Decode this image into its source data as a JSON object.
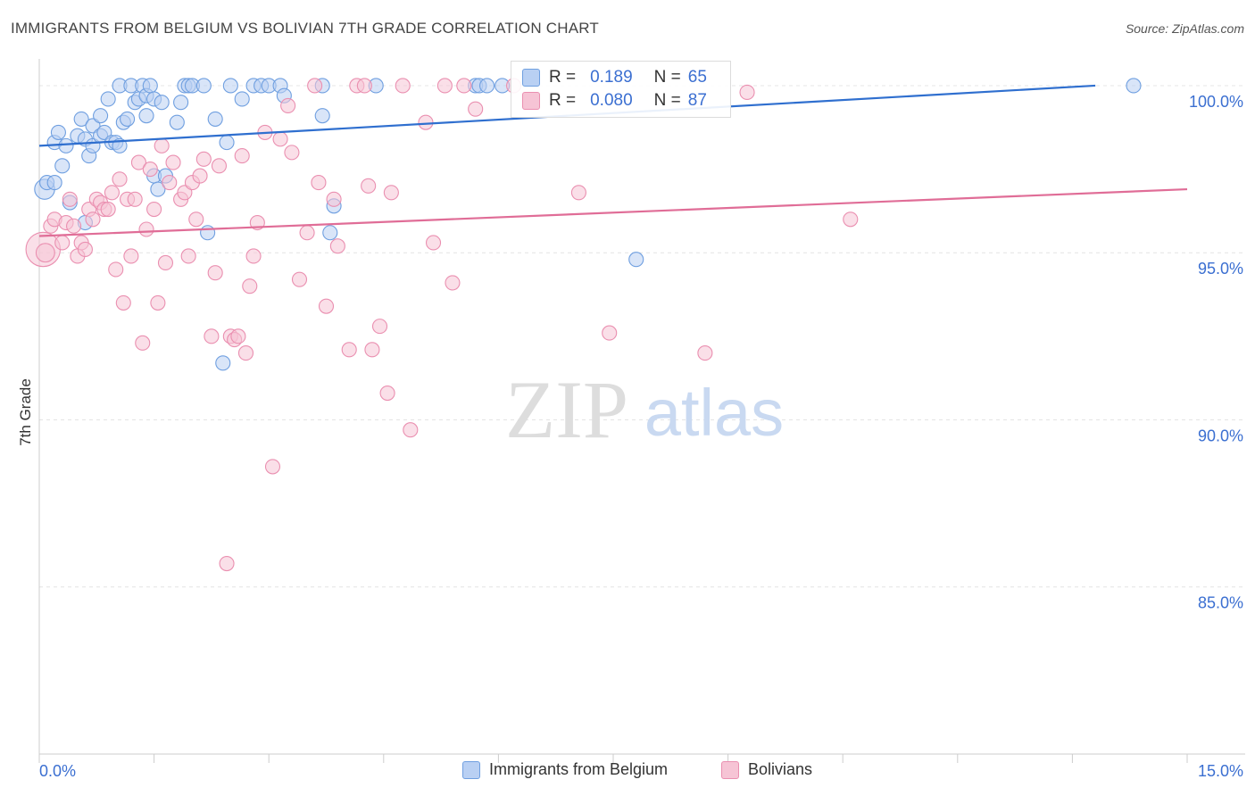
{
  "title": "IMMIGRANTS FROM BELGIUM VS BOLIVIAN 7TH GRADE CORRELATION CHART",
  "source": "Source: ZipAtlas.com",
  "watermark": {
    "zip": "ZIP",
    "atlas": "atlas"
  },
  "colors": {
    "blue": "#6f9fe0",
    "blue_fill": "#b9d0f3",
    "blue_line": "#2f6fcf",
    "pink": "#ea8fb0",
    "pink_fill": "#f6c4d5",
    "pink_line": "#e06d97",
    "tick_text": "#3b6fd1",
    "grid": "#e4e4e4"
  },
  "stats": [
    {
      "r_label": "R =",
      "r_value": "0.189",
      "n_label": "N =",
      "n_value": "65"
    },
    {
      "r_label": "R =",
      "r_value": "0.080",
      "n_label": "N =",
      "n_value": "87"
    }
  ],
  "chart_data": {
    "type": "scatter",
    "title": "IMMIGRANTS FROM BELGIUM VS BOLIVIAN 7TH GRADE CORRELATION CHART",
    "xlabel": "",
    "ylabel": "7th Grade",
    "xlim": [
      0,
      15
    ],
    "ylim": [
      80,
      100.8
    ],
    "x_tick_labels": [
      {
        "value": 0,
        "label": "0.0%"
      },
      {
        "value": 15,
        "label": "15.0%"
      }
    ],
    "y_tick_labels": [
      {
        "value": 100,
        "label": "100.0%"
      },
      {
        "value": 95,
        "label": "95.0%"
      },
      {
        "value": 90,
        "label": "90.0%"
      },
      {
        "value": 85,
        "label": "85.0%"
      }
    ],
    "grid": true,
    "legend_position": "bottom-center",
    "series": [
      {
        "name": "Immigrants from Belgium",
        "color": "#6f9fe0",
        "trend": {
          "x": [
            0,
            13.8
          ],
          "y": [
            98.2,
            100.0
          ]
        },
        "points": [
          [
            0.07,
            96.9,
            1.4
          ],
          [
            0.1,
            97.1,
            1
          ],
          [
            0.2,
            97.1,
            1
          ],
          [
            0.2,
            98.3,
            1
          ],
          [
            0.25,
            98.6,
            1
          ],
          [
            0.3,
            97.6,
            1
          ],
          [
            0.35,
            98.2,
            1
          ],
          [
            0.4,
            96.5,
            1
          ],
          [
            0.5,
            98.5,
            1
          ],
          [
            0.55,
            99.0,
            1
          ],
          [
            0.6,
            98.4,
            1
          ],
          [
            0.6,
            95.9,
            1
          ],
          [
            0.65,
            97.9,
            1
          ],
          [
            0.7,
            98.8,
            1
          ],
          [
            0.7,
            98.2,
            1
          ],
          [
            0.8,
            99.1,
            1
          ],
          [
            0.8,
            98.5,
            1
          ],
          [
            0.85,
            98.6,
            1
          ],
          [
            0.9,
            99.6,
            1
          ],
          [
            0.95,
            98.3,
            1
          ],
          [
            1.0,
            98.3,
            1
          ],
          [
            1.05,
            100.0,
            1
          ],
          [
            1.05,
            98.2,
            1
          ],
          [
            1.1,
            98.9,
            1
          ],
          [
            1.15,
            99.0,
            1
          ],
          [
            1.2,
            100.0,
            1
          ],
          [
            1.25,
            99.5,
            1
          ],
          [
            1.3,
            99.6,
            1
          ],
          [
            1.35,
            100.0,
            1
          ],
          [
            1.4,
            99.7,
            1
          ],
          [
            1.4,
            99.1,
            1
          ],
          [
            1.45,
            100.0,
            1
          ],
          [
            1.5,
            99.6,
            1
          ],
          [
            1.5,
            97.3,
            1
          ],
          [
            1.55,
            96.9,
            1
          ],
          [
            1.6,
            99.5,
            1
          ],
          [
            1.65,
            97.3,
            1
          ],
          [
            1.8,
            98.9,
            1
          ],
          [
            1.85,
            99.5,
            1
          ],
          [
            1.9,
            100.0,
            1
          ],
          [
            1.95,
            100.0,
            1
          ],
          [
            2.0,
            100.0,
            1
          ],
          [
            2.15,
            100.0,
            1
          ],
          [
            2.2,
            95.6,
            1
          ],
          [
            2.3,
            99.0,
            1
          ],
          [
            2.4,
            91.7,
            1
          ],
          [
            2.45,
            98.3,
            1
          ],
          [
            2.5,
            100.0,
            1
          ],
          [
            2.65,
            99.6,
            1
          ],
          [
            2.8,
            100.0,
            1
          ],
          [
            2.9,
            100.0,
            1
          ],
          [
            3.0,
            100.0,
            1
          ],
          [
            3.15,
            100.0,
            1
          ],
          [
            3.2,
            99.7,
            1
          ],
          [
            3.7,
            100.0,
            1
          ],
          [
            3.7,
            99.1,
            1
          ],
          [
            3.8,
            95.6,
            1
          ],
          [
            3.85,
            96.4,
            1
          ],
          [
            4.4,
            100.0,
            1
          ],
          [
            5.7,
            100.0,
            1
          ],
          [
            5.75,
            100.0,
            1
          ],
          [
            5.85,
            100.0,
            1
          ],
          [
            6.05,
            100.0,
            1
          ],
          [
            7.8,
            94.8,
            1
          ],
          [
            14.3,
            100.0,
            1
          ]
        ]
      },
      {
        "name": "Bolivians",
        "color": "#ea8fb0",
        "trend": {
          "x": [
            0,
            15
          ],
          "y": [
            95.5,
            96.9
          ]
        },
        "points": [
          [
            0.05,
            95.1,
            2.4
          ],
          [
            0.08,
            95.0,
            1.3
          ],
          [
            0.15,
            95.8,
            1
          ],
          [
            0.2,
            96.0,
            1
          ],
          [
            0.3,
            95.3,
            1
          ],
          [
            0.35,
            95.9,
            1
          ],
          [
            0.4,
            96.6,
            1
          ],
          [
            0.45,
            95.8,
            1
          ],
          [
            0.5,
            94.9,
            1
          ],
          [
            0.55,
            95.3,
            1
          ],
          [
            0.6,
            95.1,
            1
          ],
          [
            0.65,
            96.3,
            1
          ],
          [
            0.7,
            96.0,
            1
          ],
          [
            0.75,
            96.6,
            1
          ],
          [
            0.8,
            96.5,
            1
          ],
          [
            0.85,
            96.3,
            1
          ],
          [
            0.9,
            96.3,
            1
          ],
          [
            0.95,
            96.8,
            1
          ],
          [
            1.0,
            94.5,
            1
          ],
          [
            1.05,
            97.2,
            1
          ],
          [
            1.1,
            93.5,
            1
          ],
          [
            1.15,
            96.6,
            1
          ],
          [
            1.2,
            94.9,
            1
          ],
          [
            1.25,
            96.6,
            1
          ],
          [
            1.3,
            97.7,
            1
          ],
          [
            1.35,
            92.3,
            1
          ],
          [
            1.4,
            95.7,
            1
          ],
          [
            1.45,
            97.5,
            1
          ],
          [
            1.5,
            96.3,
            1
          ],
          [
            1.55,
            93.5,
            1
          ],
          [
            1.6,
            98.2,
            1
          ],
          [
            1.65,
            94.7,
            1
          ],
          [
            1.7,
            97.1,
            1
          ],
          [
            1.75,
            97.7,
            1
          ],
          [
            1.85,
            96.6,
            1
          ],
          [
            1.9,
            96.8,
            1
          ],
          [
            1.95,
            94.9,
            1
          ],
          [
            2.0,
            97.1,
            1
          ],
          [
            2.05,
            96.0,
            1
          ],
          [
            2.1,
            97.3,
            1
          ],
          [
            2.15,
            97.8,
            1
          ],
          [
            2.25,
            92.5,
            1
          ],
          [
            2.3,
            94.4,
            1
          ],
          [
            2.35,
            97.6,
            1
          ],
          [
            2.45,
            85.7,
            1
          ],
          [
            2.5,
            92.5,
            1
          ],
          [
            2.55,
            92.4,
            1
          ],
          [
            2.6,
            92.5,
            1
          ],
          [
            2.65,
            97.9,
            1
          ],
          [
            2.7,
            92.0,
            1
          ],
          [
            2.75,
            94.0,
            1
          ],
          [
            2.8,
            94.9,
            1
          ],
          [
            2.85,
            95.9,
            1
          ],
          [
            2.95,
            98.6,
            1
          ],
          [
            3.05,
            88.6,
            1
          ],
          [
            3.15,
            98.4,
            1
          ],
          [
            3.25,
            99.4,
            1
          ],
          [
            3.3,
            98.0,
            1
          ],
          [
            3.4,
            94.2,
            1
          ],
          [
            3.5,
            95.6,
            1
          ],
          [
            3.6,
            100.0,
            1
          ],
          [
            3.65,
            97.1,
            1
          ],
          [
            3.75,
            93.4,
            1
          ],
          [
            3.85,
            96.6,
            1
          ],
          [
            3.9,
            95.2,
            1
          ],
          [
            4.05,
            92.1,
            1
          ],
          [
            4.15,
            100.0,
            1
          ],
          [
            4.25,
            100.0,
            1
          ],
          [
            4.3,
            97.0,
            1
          ],
          [
            4.35,
            92.1,
            1
          ],
          [
            4.45,
            92.8,
            1
          ],
          [
            4.55,
            90.8,
            1
          ],
          [
            4.6,
            96.8,
            1
          ],
          [
            4.75,
            100.0,
            1
          ],
          [
            4.85,
            89.7,
            1
          ],
          [
            5.05,
            98.9,
            1
          ],
          [
            5.15,
            95.3,
            1
          ],
          [
            5.3,
            100.0,
            1
          ],
          [
            5.4,
            94.1,
            1
          ],
          [
            5.55,
            100.0,
            1
          ],
          [
            5.7,
            99.3,
            1
          ],
          [
            6.2,
            100.0,
            1
          ],
          [
            7.05,
            96.8,
            1
          ],
          [
            7.45,
            92.6,
            1
          ],
          [
            8.7,
            92.0,
            1
          ],
          [
            9.25,
            99.8,
            1
          ],
          [
            10.6,
            96.0,
            1
          ]
        ]
      }
    ]
  }
}
